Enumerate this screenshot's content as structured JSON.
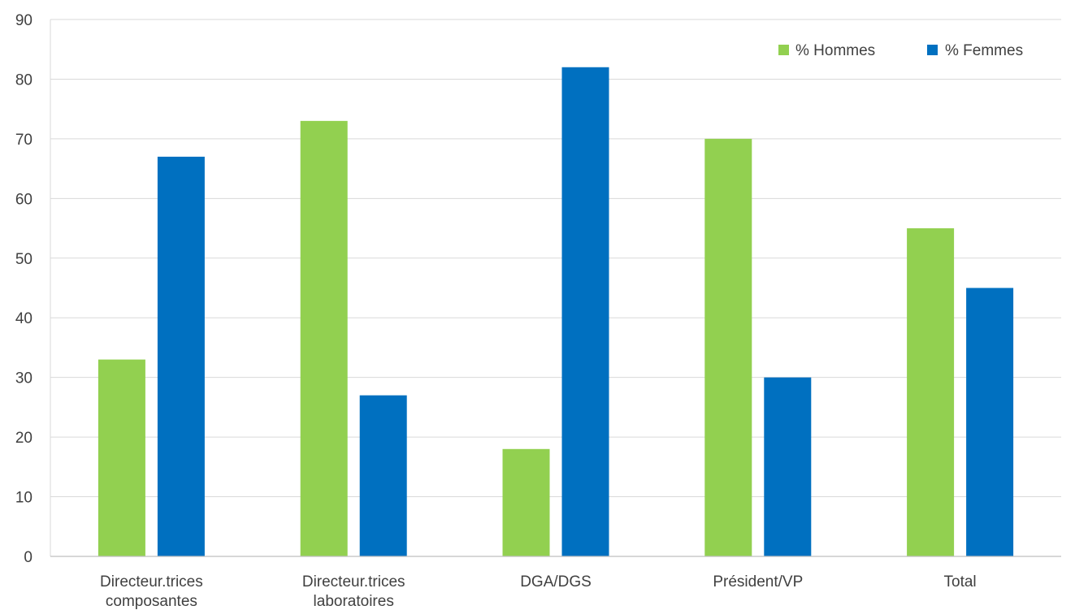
{
  "chart_data": {
    "type": "bar",
    "title": "",
    "xlabel": "",
    "ylabel": "",
    "ylim": [
      0,
      90
    ],
    "yticks": [
      0,
      10,
      20,
      30,
      40,
      50,
      60,
      70,
      80,
      90
    ],
    "grid": true,
    "legend_position": "top-right",
    "categories": [
      [
        "Directeur.trices",
        "composantes"
      ],
      [
        "Directeur.trices",
        "laboratoires"
      ],
      [
        "DGA/DGS"
      ],
      [
        "Président/VP"
      ],
      [
        "Total"
      ]
    ],
    "series": [
      {
        "name": "% Hommes",
        "color": "#92D050",
        "values": [
          33,
          73,
          18,
          70,
          55
        ]
      },
      {
        "name": "% Femmes",
        "color": "#0070C0",
        "values": [
          67,
          27,
          82,
          30,
          45
        ]
      }
    ]
  }
}
